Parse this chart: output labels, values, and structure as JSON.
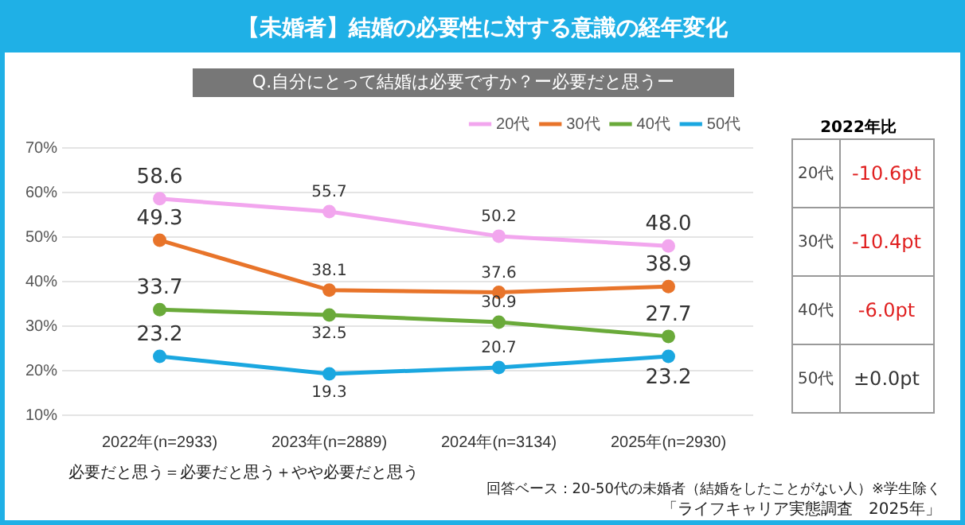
{
  "chart_data": {
    "type": "line",
    "title": "【未婚者】結婚の必要性に対する意識の経年変化",
    "subtitle": "Q.自分にとって結婚は必要ですか？ー必要だと思うー",
    "categories": [
      "2022年(n=2933)",
      "2023年(n=2889)",
      "2024年(n=3134)",
      "2025年(n=2930)"
    ],
    "series": [
      {
        "name": "20代",
        "color": "#f2a6ee",
        "values": [
          58.6,
          55.7,
          50.2,
          48.0
        ],
        "value_labels": [
          "58.6",
          "55.7",
          "50.2",
          "48.0"
        ]
      },
      {
        "name": "30代",
        "color": "#e8742a",
        "values": [
          49.3,
          38.1,
          37.6,
          38.9
        ],
        "value_labels": [
          "49.3",
          "38.1",
          "37.6",
          "38.9"
        ]
      },
      {
        "name": "40代",
        "color": "#6aaa3a",
        "values": [
          33.7,
          32.5,
          30.9,
          27.7
        ],
        "value_labels": [
          "33.7",
          "32.5",
          "30.9",
          "27.7"
        ]
      },
      {
        "name": "50代",
        "color": "#1aa7e0",
        "values": [
          23.2,
          19.3,
          20.7,
          23.2
        ],
        "value_labels": [
          "23.2",
          "19.3",
          "20.7",
          "23.2"
        ]
      }
    ],
    "ylim": [
      10,
      70
    ],
    "yticks": [
      {
        "value": 10,
        "label": "10%"
      },
      {
        "value": 20,
        "label": "20%"
      },
      {
        "value": 30,
        "label": "30%"
      },
      {
        "value": 40,
        "label": "40%"
      },
      {
        "value": 50,
        "label": "50%"
      },
      {
        "value": 60,
        "label": "60%"
      },
      {
        "value": 70,
        "label": "70%"
      }
    ],
    "grid": "y",
    "legend": "top right",
    "marker": "circle",
    "line_style": "solid",
    "annotations": [
      "2022年比",
      "20代",
      "-10.6pt",
      "30代",
      "-10.4pt",
      "40代",
      "-6.0pt",
      "50代",
      "±0.0pt",
      "必要だと思う＝必要だと思う＋やや必要だと思う",
      "回答ベース：20-50代の未婚者（結婚をしたことがない人）※学生除く",
      "「ライフキャリア実態調査　2025年」"
    ]
  }
}
